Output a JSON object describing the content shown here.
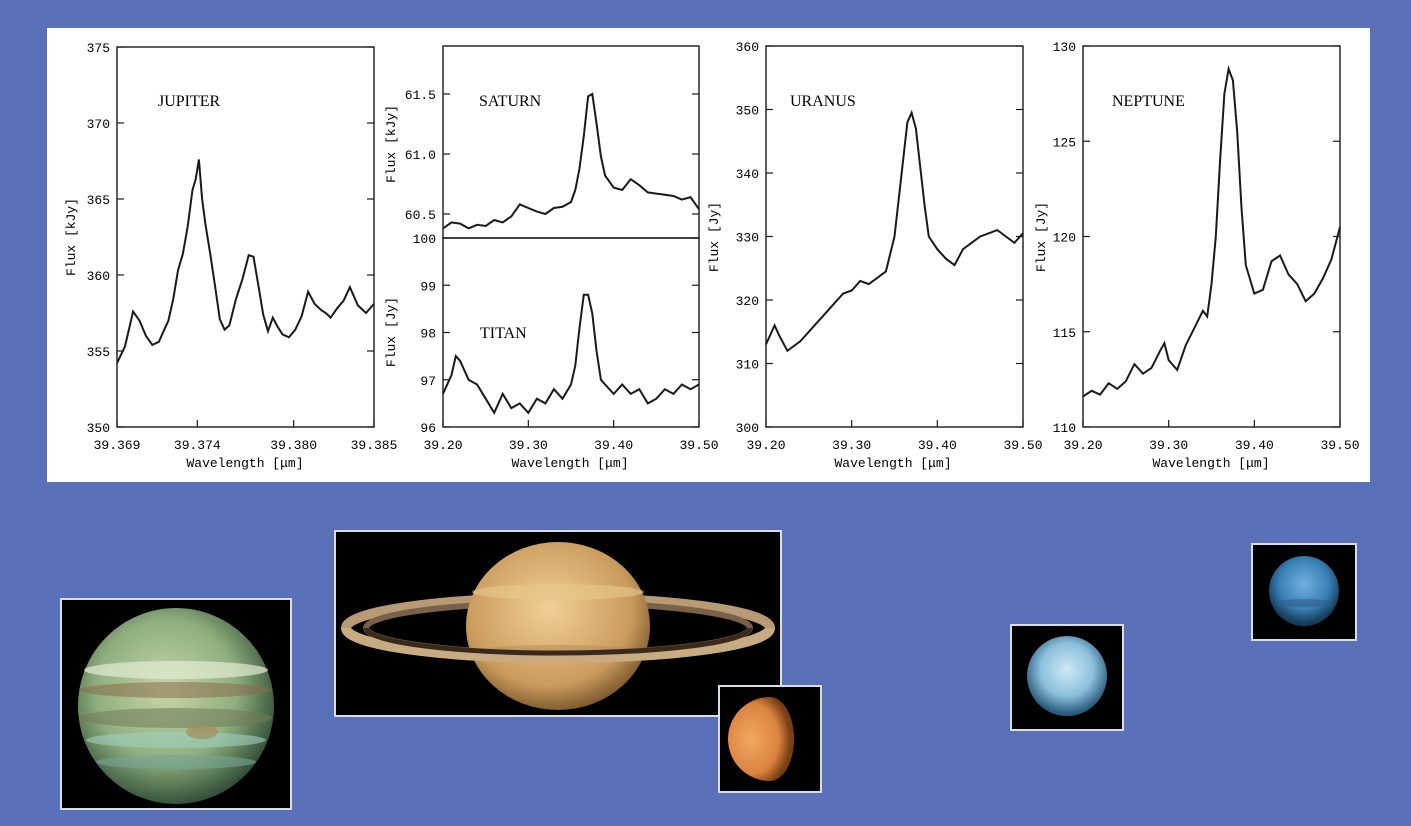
{
  "theme": {
    "background": "#5a70b8",
    "panel": "#ffffff",
    "line": "#1a1a1a"
  },
  "chart_data": [
    {
      "type": "line",
      "annotation": "JUPITER",
      "xlabel": "Wavelength [μm]",
      "ylabel": "Flux [kJy]",
      "xlim": [
        39.369,
        39.385
      ],
      "ylim": [
        350,
        375
      ],
      "xticks": [
        "39.369",
        "39.374",
        "39.380",
        "39.385"
      ],
      "xtick_values": [
        39.369,
        39.374,
        39.38,
        39.385
      ],
      "yticks": [
        350,
        355,
        360,
        365,
        370,
        375
      ],
      "x": [
        39.369,
        39.3695,
        39.37,
        39.3704,
        39.3708,
        39.3712,
        39.3716,
        39.3719,
        39.3722,
        39.3725,
        39.3728,
        39.3731,
        39.3734,
        39.3737,
        39.3739,
        39.3741,
        39.3743,
        39.3745,
        39.3748,
        39.3751,
        39.3754,
        39.3757,
        39.376,
        39.3764,
        39.3768,
        39.3772,
        39.3775,
        39.3778,
        39.3781,
        39.3784,
        39.3787,
        39.379,
        39.3793,
        39.3797,
        39.3801,
        39.3805,
        39.3809,
        39.3813,
        39.3817,
        39.382,
        39.3823,
        39.3827,
        39.3831,
        39.3835,
        39.384,
        39.3845,
        39.385
      ],
      "y": [
        354.2,
        355.3,
        357.6,
        357.0,
        356.0,
        355.4,
        355.6,
        356.3,
        357.0,
        358.4,
        360.3,
        361.4,
        363.2,
        365.6,
        366.3,
        367.6,
        365.0,
        363.4,
        361.4,
        359.3,
        357.1,
        356.4,
        356.7,
        358.4,
        359.7,
        361.3,
        361.2,
        359.3,
        357.4,
        356.3,
        357.2,
        356.6,
        356.1,
        355.9,
        356.4,
        357.3,
        358.9,
        358.1,
        357.7,
        357.5,
        357.2,
        357.8,
        358.3,
        359.2,
        358.0,
        357.5,
        358.1
      ]
    },
    {
      "type": "line",
      "annotation": "SATURN",
      "xlabel": "",
      "ylabel": "Flux [kJy]",
      "xlim": [
        39.2,
        39.5
      ],
      "ylim": [
        60.3,
        61.9
      ],
      "yticks": [
        60.5,
        61.0,
        61.5
      ],
      "ytick_labels": [
        "60.5",
        "61.0",
        "61.5"
      ],
      "x": [
        39.2,
        39.21,
        39.22,
        39.23,
        39.24,
        39.25,
        39.26,
        39.27,
        39.28,
        39.29,
        39.3,
        39.31,
        39.32,
        39.33,
        39.34,
        39.35,
        39.355,
        39.36,
        39.365,
        39.37,
        39.375,
        39.38,
        39.385,
        39.39,
        39.4,
        39.41,
        39.42,
        39.43,
        39.44,
        39.45,
        39.46,
        39.47,
        39.48,
        39.49,
        39.5
      ],
      "y": [
        60.38,
        60.43,
        60.42,
        60.38,
        60.41,
        60.4,
        60.45,
        60.43,
        60.48,
        60.58,
        60.55,
        60.52,
        60.5,
        60.55,
        60.56,
        60.6,
        60.7,
        60.88,
        61.15,
        61.48,
        61.5,
        61.25,
        60.98,
        60.82,
        60.72,
        60.7,
        60.79,
        60.74,
        60.68,
        60.67,
        60.66,
        60.65,
        60.62,
        60.64,
        60.54
      ]
    },
    {
      "type": "line",
      "annotation": "TITAN",
      "xlabel": "Wavelength [μm]",
      "ylabel": "Flux [Jy]",
      "xlim": [
        39.2,
        39.5
      ],
      "ylim": [
        96,
        100
      ],
      "xticks": [
        "39.20",
        "39.30",
        "39.40",
        "39.50"
      ],
      "xtick_values": [
        39.2,
        39.3,
        39.4,
        39.5
      ],
      "yticks": [
        96,
        97,
        98,
        99,
        100
      ],
      "x": [
        39.2,
        39.21,
        39.215,
        39.22,
        39.23,
        39.24,
        39.25,
        39.26,
        39.27,
        39.28,
        39.29,
        39.3,
        39.31,
        39.32,
        39.33,
        39.34,
        39.35,
        39.355,
        39.36,
        39.365,
        39.37,
        39.375,
        39.38,
        39.385,
        39.39,
        39.4,
        39.41,
        39.42,
        39.43,
        39.44,
        39.45,
        39.46,
        39.47,
        39.48,
        39.49,
        39.5
      ],
      "y": [
        96.7,
        97.1,
        97.5,
        97.4,
        97.0,
        96.9,
        96.6,
        96.3,
        96.7,
        96.4,
        96.5,
        96.3,
        96.6,
        96.5,
        96.8,
        96.6,
        96.9,
        97.3,
        98.1,
        98.8,
        98.8,
        98.4,
        97.6,
        97.0,
        96.9,
        96.7,
        96.9,
        96.7,
        96.8,
        96.5,
        96.6,
        96.8,
        96.7,
        96.9,
        96.8,
        96.9
      ]
    },
    {
      "type": "line",
      "annotation": "URANUS",
      "xlabel": "Wavelength [μm]",
      "ylabel": "Flux [Jy]",
      "xlim": [
        39.2,
        39.5
      ],
      "ylim": [
        300,
        360
      ],
      "xticks": [
        "39.20",
        "39.30",
        "39.40",
        "39.50"
      ],
      "xtick_values": [
        39.2,
        39.3,
        39.4,
        39.5
      ],
      "yticks": [
        300,
        310,
        320,
        330,
        340,
        350,
        360
      ],
      "x": [
        39.2,
        39.21,
        39.215,
        39.225,
        39.24,
        39.25,
        39.26,
        39.27,
        39.28,
        39.29,
        39.3,
        39.31,
        39.32,
        39.33,
        39.34,
        39.35,
        39.355,
        39.36,
        39.365,
        39.37,
        39.375,
        39.38,
        39.385,
        39.39,
        39.4,
        39.41,
        39.42,
        39.43,
        39.44,
        39.45,
        39.46,
        39.47,
        39.48,
        39.49,
        39.5
      ],
      "y": [
        313.0,
        316.0,
        314.5,
        312.0,
        313.5,
        315.0,
        316.5,
        318.0,
        319.5,
        321.0,
        321.5,
        323.0,
        322.5,
        323.5,
        324.5,
        330.0,
        336.0,
        342.0,
        348.0,
        349.5,
        347.0,
        341.0,
        335.0,
        330.0,
        328.0,
        326.5,
        325.5,
        328.0,
        329.0,
        330.0,
        330.5,
        331.0,
        330.0,
        329.0,
        330.5
      ]
    },
    {
      "type": "line",
      "annotation": "NEPTUNE",
      "xlabel": "Wavelength [μm]",
      "ylabel": "Flux [Jy]",
      "xlim": [
        39.2,
        39.5
      ],
      "ylim": [
        110,
        130
      ],
      "xticks": [
        "39.20",
        "39.30",
        "39.40",
        "39.50"
      ],
      "xtick_values": [
        39.2,
        39.3,
        39.4,
        39.5
      ],
      "yticks": [
        110,
        115,
        120,
        125,
        130
      ],
      "x": [
        39.2,
        39.21,
        39.22,
        39.23,
        39.24,
        39.25,
        39.26,
        39.27,
        39.28,
        39.29,
        39.295,
        39.3,
        39.31,
        39.32,
        39.33,
        39.34,
        39.345,
        39.35,
        39.355,
        39.36,
        39.365,
        39.37,
        39.375,
        39.38,
        39.385,
        39.39,
        39.4,
        39.41,
        39.42,
        39.43,
        39.44,
        39.45,
        39.46,
        39.47,
        39.48,
        39.49,
        39.5
      ],
      "y": [
        111.6,
        111.9,
        111.7,
        112.3,
        112.0,
        112.4,
        113.3,
        112.8,
        113.1,
        114.0,
        114.4,
        113.5,
        113.0,
        114.3,
        115.2,
        116.1,
        115.8,
        117.5,
        120.0,
        124.0,
        127.5,
        128.8,
        128.2,
        125.5,
        121.5,
        118.5,
        117.0,
        117.2,
        118.7,
        119.0,
        118.0,
        117.5,
        116.6,
        117.0,
        117.8,
        118.8,
        120.5
      ]
    }
  ],
  "photos": [
    {
      "icon": "jupiter-image"
    },
    {
      "icon": "saturn-image"
    },
    {
      "icon": "titan-image"
    },
    {
      "icon": "uranus-image"
    },
    {
      "icon": "neptune-image"
    }
  ]
}
